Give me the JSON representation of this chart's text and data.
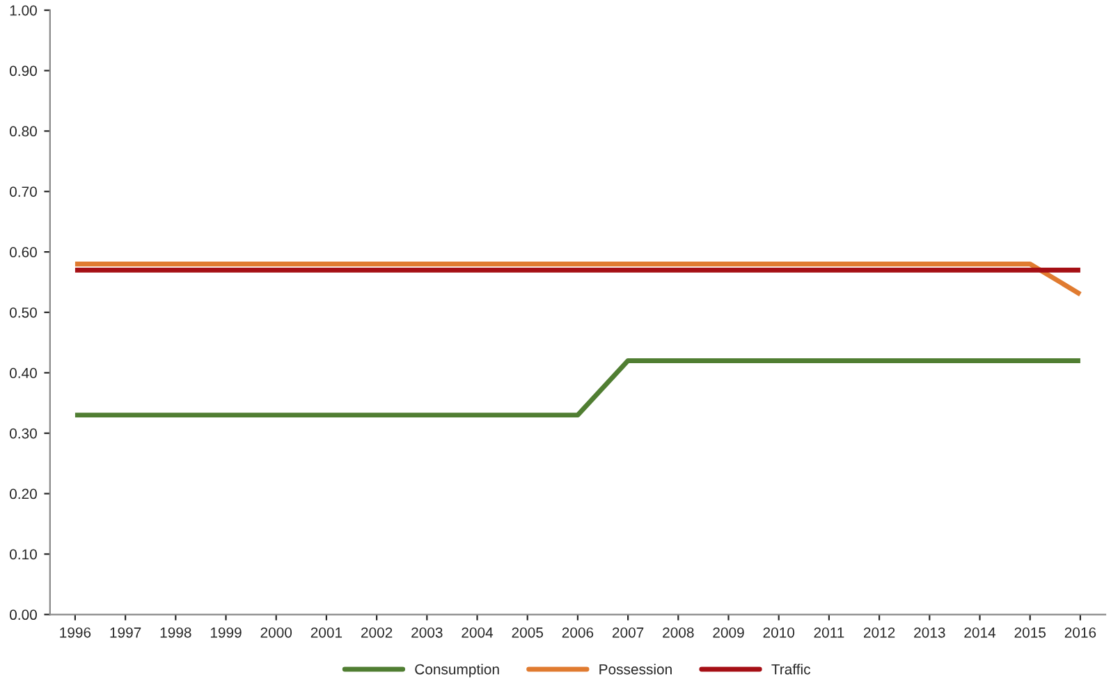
{
  "chart_data": {
    "type": "line",
    "categories": [
      "1996",
      "1997",
      "1998",
      "1999",
      "2000",
      "2001",
      "2002",
      "2003",
      "2004",
      "2005",
      "2006",
      "2007",
      "2008",
      "2009",
      "2010",
      "2011",
      "2012",
      "2013",
      "2014",
      "2015",
      "2016"
    ],
    "series": [
      {
        "name": "Consumption",
        "color": "#507e32",
        "values": [
          0.33,
          0.33,
          0.33,
          0.33,
          0.33,
          0.33,
          0.33,
          0.33,
          0.33,
          0.33,
          0.33,
          0.42,
          0.42,
          0.42,
          0.42,
          0.42,
          0.42,
          0.42,
          0.42,
          0.42,
          0.42
        ]
      },
      {
        "name": "Possession",
        "color": "#e07b30",
        "values": [
          0.58,
          0.58,
          0.58,
          0.58,
          0.58,
          0.58,
          0.58,
          0.58,
          0.58,
          0.58,
          0.58,
          0.58,
          0.58,
          0.58,
          0.58,
          0.58,
          0.58,
          0.58,
          0.58,
          0.58,
          0.53
        ]
      },
      {
        "name": "Traffic",
        "color": "#a50f15",
        "values": [
          0.57,
          0.57,
          0.57,
          0.57,
          0.57,
          0.57,
          0.57,
          0.57,
          0.57,
          0.57,
          0.57,
          0.57,
          0.57,
          0.57,
          0.57,
          0.57,
          0.57,
          0.57,
          0.57,
          0.57,
          0.57
        ]
      }
    ],
    "ylim": [
      0,
      1
    ],
    "yticks": [
      {
        "value": 0,
        "label": "0.00"
      },
      {
        "value": 0.1,
        "label": "0.10"
      },
      {
        "value": 0.2,
        "label": "0.20"
      },
      {
        "value": 0.3,
        "label": "0.30"
      },
      {
        "value": 0.4,
        "label": "0.40"
      },
      {
        "value": 0.5,
        "label": "0.50"
      },
      {
        "value": 0.6,
        "label": "0.60"
      },
      {
        "value": 0.7,
        "label": "0.70"
      },
      {
        "value": 0.8,
        "label": "0.80"
      },
      {
        "value": 0.9,
        "label": "0.90"
      },
      {
        "value": 1,
        "label": "1.00"
      }
    ],
    "grid": false,
    "legend": "bottom",
    "marker": "none",
    "line_style": "solid"
  }
}
